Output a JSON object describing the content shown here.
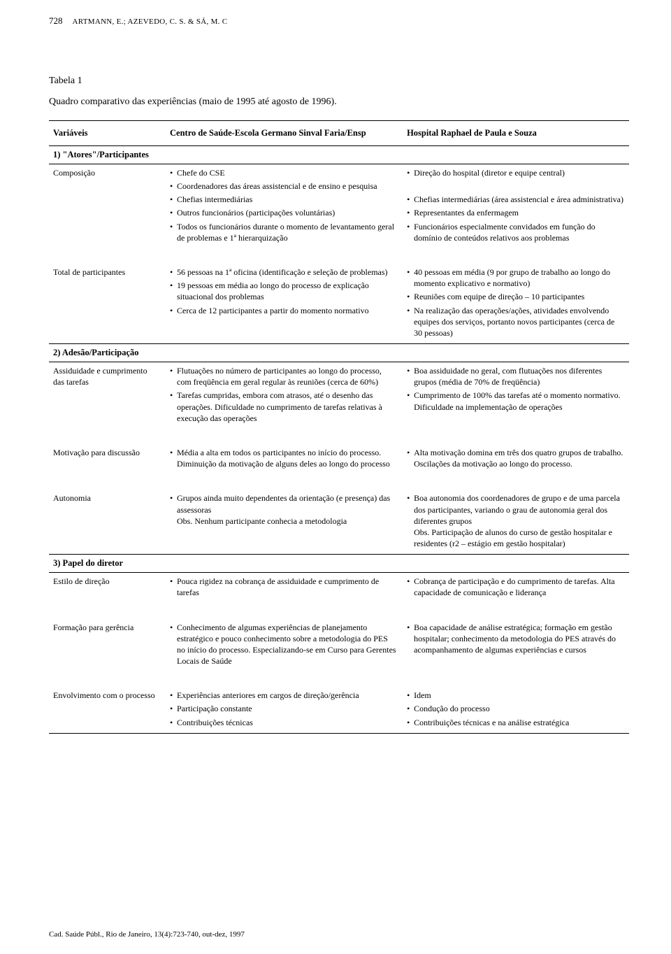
{
  "header": {
    "page_number": "728",
    "authors": "ARTMANN, E.; AZEVEDO, C. S. & SÁ, M. C"
  },
  "table": {
    "label": "Tabela 1",
    "caption": "Quadro comparativo das experiências (maio de 1995 até agosto de 1996).",
    "head": {
      "col_variaveis": "Variáveis",
      "col_centro_a": "Centro de Saúde-Escola Germano Sinval Faria/Ensp",
      "col_centro_b": "Hospital Raphael de Paula e Souza"
    },
    "sections": [
      {
        "title": "1) \"Atores\"/Participantes",
        "rows": [
          {
            "variable": "Composição",
            "a": [
              "Chefe do CSE",
              "Coordenadores das áreas assistencial e de ensino e pesquisa",
              "Chefias intermediárias",
              "Outros funcionários (participações voluntárias)",
              "Todos os funcionários durante o momento de levantamento geral de problemas e 1ª hierarquização"
            ],
            "b": [
              "Direção do hospital (diretor e equipe central)",
              "",
              "Chefias intermediárias (área assistencial e área administrativa)",
              "Representantes da enfermagem",
              "Funcionários especialmente convidados em função do domínio de conteúdos relativos aos problemas"
            ]
          },
          {
            "variable": "Total de participantes",
            "a": [
              "56 pessoas na 1ª oficina (identificação e seleção de problemas)",
              "19 pessoas em média ao longo do processo de explicação situacional dos problemas",
              "Cerca de 12 participantes a partir do momento normativo"
            ],
            "b": [
              "40 pessoas em média (9 por grupo de trabalho ao longo do momento explicativo e normativo)",
              "Reuniões com equipe de direção – 10 participantes",
              "Na realização das operações/ações, atividades envolvendo equipes dos serviços, portanto novos participantes (cerca de 30 pessoas)"
            ]
          }
        ]
      },
      {
        "title": "2) Adesão/Participação",
        "rows": [
          {
            "variable": "Assiduidade e cumprimento das tarefas",
            "a": [
              "Flutuações no número de participantes ao longo do processo, com freqüência em geral regular às reuniões (cerca de 60%)",
              "Tarefas cumpridas, embora com atrasos, até o desenho das operações. Dificuldade no cumprimento de tarefas relativas à execução das operações"
            ],
            "b": [
              "Boa assiduidade no geral, com flutuações nos diferentes grupos (média de 70% de freqüência)",
              "Cumprimento de 100% das tarefas até o momento normativo. Dificuldade na implementação de operações"
            ]
          },
          {
            "variable": "Motivação para discussão",
            "a": [
              "Média a alta em todos os participantes no início do processo. Diminuição da motivação de alguns deles ao longo do processo"
            ],
            "b": [
              "Alta motivação domina em três dos quatro grupos de trabalho. Oscilações da motivação ao longo do processo."
            ]
          },
          {
            "variable": "Autonomia",
            "a": [
              "Grupos ainda muito dependentes da orientação (e presença) das assessoras\nObs. Nenhum participante conhecia a metodologia"
            ],
            "b": [
              "Boa autonomia dos coordenadores de grupo e de uma parcela dos participantes, variando o grau de autonomia geral dos diferentes grupos\nObs. Participação de alunos do curso de gestão hospitalar e residentes (r2 – estágio em gestão hospitalar)"
            ]
          }
        ]
      },
      {
        "title": "3) Papel do diretor",
        "rows": [
          {
            "variable": "Estilo de direção",
            "a": [
              "Pouca rigidez na cobrança de assiduidade e cumprimento de tarefas"
            ],
            "b": [
              "Cobrança de participação e do cumprimento de tarefas. Alta capacidade de comunicação e liderança"
            ]
          },
          {
            "variable": "Formação para gerência",
            "a": [
              "Conhecimento de algumas experiências de planejamento estratégico e pouco conhecimento sobre a metodologia do PES no início do processo. Especializando-se em Curso para Gerentes Locais de Saúde"
            ],
            "b": [
              "Boa capacidade de análise estratégica; formação em gestão hospitalar; conhecimento da metodologia do PES através do acompanhamento de algumas experiências e cursos"
            ]
          },
          {
            "variable": "Envolvimento com o processo",
            "a": [
              "Experiências anteriores em cargos de direção/gerência",
              "Participação constante",
              "Contribuições técnicas"
            ],
            "b": [
              "Idem",
              "Condução do processo",
              "Contribuições técnicas e na análise estratégica"
            ]
          }
        ]
      }
    ]
  },
  "footer": {
    "citation": "Cad. Saúde Públ., Rio de Janeiro, 13(4):723-740, out-dez, 1997"
  }
}
